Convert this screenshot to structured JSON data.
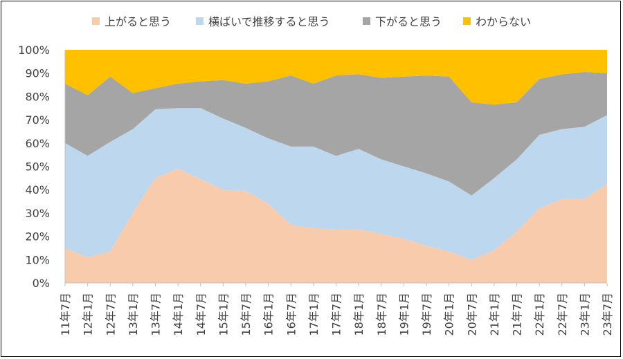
{
  "chart_data": {
    "type": "area",
    "stacked": true,
    "percent": true,
    "title": "",
    "xlabel": "",
    "ylabel": "",
    "ylim": [
      0,
      100
    ],
    "yticks": [
      "0%",
      "10%",
      "20%",
      "30%",
      "40%",
      "50%",
      "60%",
      "70%",
      "80%",
      "90%",
      "100%"
    ],
    "legend_position": "top",
    "grid": false,
    "categories": [
      "11年7月",
      "12年1月",
      "12年7月",
      "13年1月",
      "13年7月",
      "14年1月",
      "14年7月",
      "15年1月",
      "15年7月",
      "16年1月",
      "16年7月",
      "17年1月",
      "17年7月",
      "18年1月",
      "18年7月",
      "19年1月",
      "19年7月",
      "20年1月",
      "20年7月",
      "21年1月",
      "21年7月",
      "22年1月",
      "22年7月",
      "23年1月",
      "23年7月"
    ],
    "series": [
      {
        "name": "上がると思う",
        "color": "#f8cbad",
        "values": [
          15,
          11,
          13.5,
          30,
          45,
          49,
          44.5,
          40,
          39.5,
          34,
          25,
          23.5,
          23,
          23,
          21,
          19,
          16,
          13.5,
          10,
          14,
          22,
          32,
          36,
          36,
          42.5
        ]
      },
      {
        "name": "横ばいで推移すると思う",
        "color": "#bdd7ee",
        "values": [
          45,
          43.5,
          47,
          36,
          29.5,
          26,
          30.5,
          30.5,
          27,
          28,
          33.5,
          35,
          31.5,
          34.5,
          32,
          31,
          31,
          30,
          27.5,
          31,
          31,
          31.5,
          30,
          31,
          29.5
        ]
      },
      {
        "name": "下がると思う",
        "color": "#a5a5a5",
        "values": [
          25.5,
          26,
          28,
          15.5,
          9,
          10.5,
          11.5,
          16.5,
          19,
          24.5,
          30.5,
          27,
          34.5,
          32,
          35,
          38.5,
          42,
          45,
          40,
          31.5,
          24.5,
          24,
          23.5,
          23.5,
          18
        ]
      },
      {
        "name": "わからない",
        "color": "#ffc000",
        "values": [
          14.5,
          19.5,
          11.5,
          18.5,
          16.5,
          14.5,
          13.5,
          13,
          14.5,
          13.5,
          11,
          14.5,
          11,
          10.5,
          12,
          11.5,
          11,
          11.5,
          22.5,
          23.5,
          22.5,
          12.5,
          10.5,
          9.5,
          10
        ]
      }
    ]
  }
}
